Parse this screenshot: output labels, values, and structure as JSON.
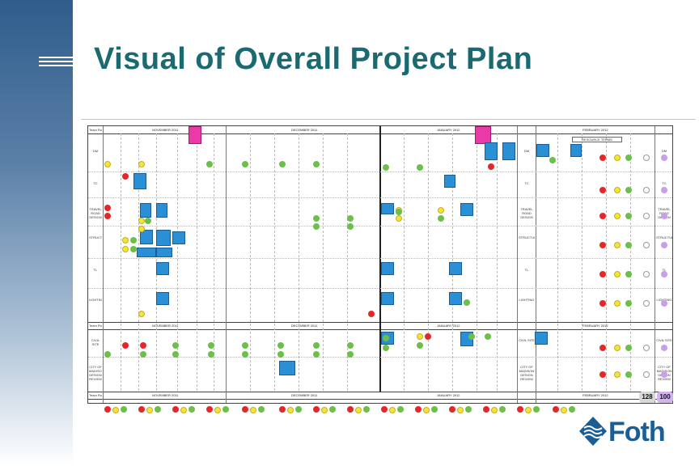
{
  "slide": {
    "title": "Visual of Overall Project Plan"
  },
  "plan": {
    "team_role_header": "Team Role",
    "top_months": [
      "NOVEMBER 2011",
      "DECEMBER 2011",
      "JANUARY 2012",
      "FEBRUARY 2012"
    ],
    "mid_months": [
      "NOVEMBER 2011",
      "DECEMBER 2011",
      "JANUARY 2012",
      "FEBRUARY 2012"
    ],
    "bottom_months": [
      "NOVEMBER 2011",
      "DECEMBER 2011",
      "JANUARY 2012",
      "FEBRUARY 2012"
    ],
    "resource_terms": "RESOURCE TERMS",
    "rows_top": [
      "DM",
      "TC",
      "TRAVEL ROAD DESIGN",
      "STRUCTURE",
      "TL",
      "LIGHTING"
    ],
    "rows_mid": [
      "CIVIL SITE",
      "CITY OF MADISON DESIGN REVIEW"
    ],
    "counter_left": "128",
    "counter_right": "100",
    "colors": {
      "task_blue": "#2b8fd6",
      "milestone_pink": "#e93aa8",
      "status_red": "#e42828",
      "status_green": "#6cc04a",
      "status_yellow": "#f5e33a",
      "title_teal": "#1a6a72",
      "brand_blue": "#1a5e95"
    }
  },
  "brand": {
    "logo_text": "Foth",
    "logo_icon": "foth-wave-logo-icon"
  }
}
